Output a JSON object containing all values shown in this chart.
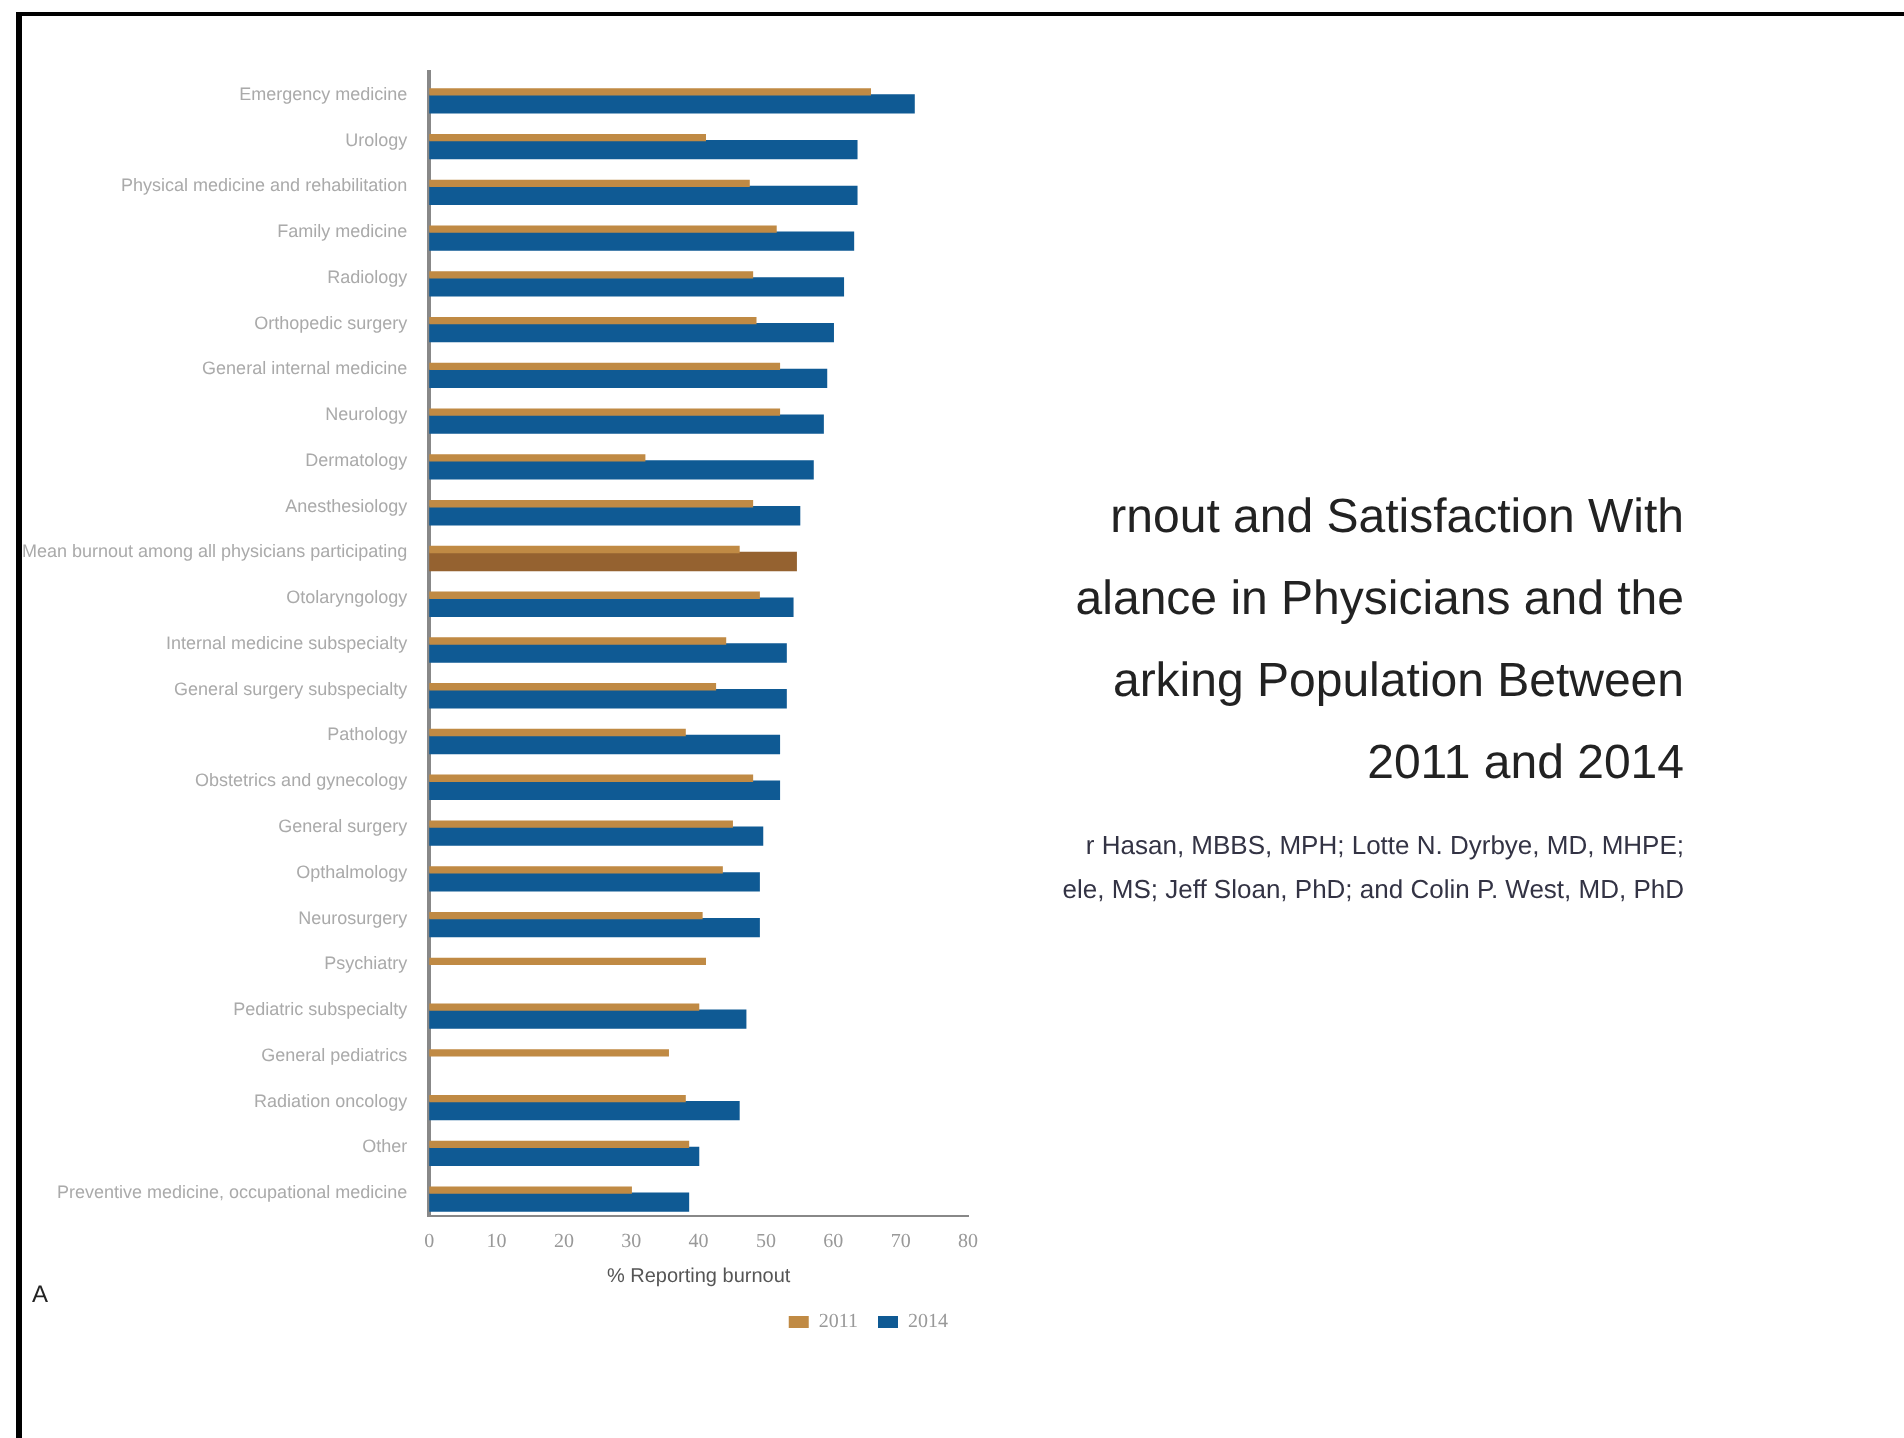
{
  "chart_data": {
    "type": "bar",
    "orientation": "horizontal",
    "xlabel": "% Reporting burnout",
    "categories": [
      "Emergency medicine",
      "Urology",
      "Physical medicine and rehabilitation",
      "Family medicine",
      "Radiology",
      "Orthopedic surgery",
      "General internal medicine",
      "Neurology",
      "Dermatology",
      "Anesthesiology",
      "Mean burnout among all physicians participating",
      "Otolaryngology",
      "Internal medicine subspecialty",
      "General surgery subspecialty",
      "Pathology",
      "Obstetrics and gynecology",
      "General surgery",
      "Opthalmology",
      "Neurosurgery",
      "Psychiatry",
      "Pediatric subspecialty",
      "General pediatrics",
      "Radiation oncology",
      "Other",
      "Preventive medicine, occupational medicine"
    ],
    "series": [
      {
        "name": "2011",
        "color": "#c08a44",
        "values": [
          65.5,
          41,
          47.5,
          51.5,
          48,
          48.5,
          52,
          52,
          32,
          48,
          46,
          49,
          44,
          42.5,
          38,
          48,
          45,
          43.5,
          40.5,
          41,
          40,
          35.5,
          38,
          38.5,
          30
        ]
      },
      {
        "name": "2014",
        "color": "#0f5a94",
        "colors": [
          "#0f5a94",
          "#0f5a94",
          "#0f5a94",
          "#0f5a94",
          "#0f5a94",
          "#0f5a94",
          "#0f5a94",
          "#0f5a94",
          "#0f5a94",
          "#0f5a94",
          "#956230",
          "#0f5a94",
          "#0f5a94",
          "#0f5a94",
          "#0f5a94",
          "#0f5a94",
          "#0f5a94",
          "#0f5a94",
          "#0f5a94",
          "#0f5a94",
          "#0f5a94",
          "#0f5a94",
          "#0f5a94",
          "#0f5a94",
          "#0f5a94"
        ],
        "values": [
          72,
          63.5,
          63.5,
          63,
          61.5,
          60,
          59,
          58.5,
          57,
          55,
          54.5,
          54,
          53,
          53,
          52,
          52,
          49.5,
          49,
          49,
          null,
          47,
          null,
          46,
          40,
          38.5
        ]
      }
    ],
    "xlim": [
      0,
      80
    ],
    "xticks": [
      0,
      10,
      20,
      30,
      40,
      50,
      60,
      70,
      80
    ],
    "grid": false,
    "legend": "bottom right",
    "annotations": [
      "rnout and Satisfaction With",
      "alance in Physicians and the",
      "arking Population Between",
      "2011 and 2014",
      "r Hasan, MBBS, MPH; Lotte N. Dyrbye, MD, MHPE;",
      "ele, MS; Jeff Sloan, PhD; and Colin P. West, MD, PhD",
      "A"
    ]
  }
}
